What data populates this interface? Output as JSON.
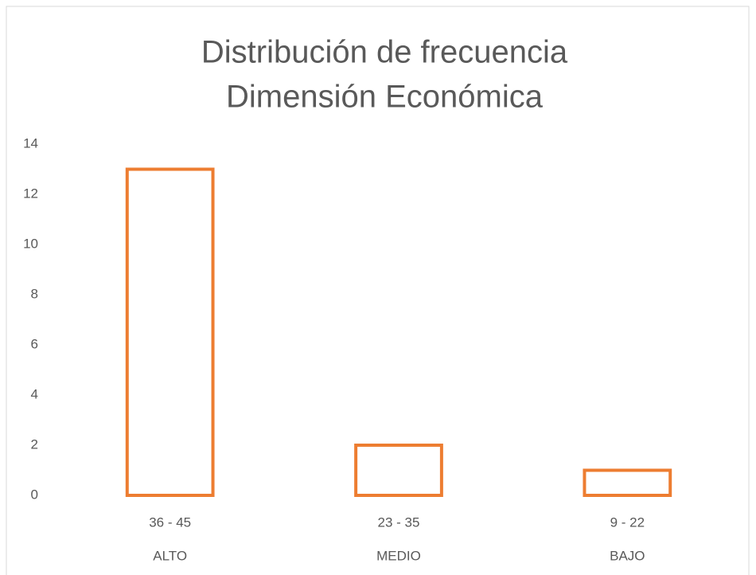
{
  "chart_data": {
    "type": "bar",
    "title": [
      "Distribución de frecuencia",
      "Dimensión Económica"
    ],
    "categories": [
      "36 - 45",
      "23 - 35",
      "9 - 22"
    ],
    "groups": [
      "ALTO",
      "MEDIO",
      "BAJO"
    ],
    "values": [
      13,
      2,
      1
    ],
    "color": "#ed7d31",
    "ylim": [
      0,
      14
    ],
    "yticks": [
      0,
      2,
      4,
      6,
      8,
      10,
      12,
      14
    ],
    "grid": false
  }
}
